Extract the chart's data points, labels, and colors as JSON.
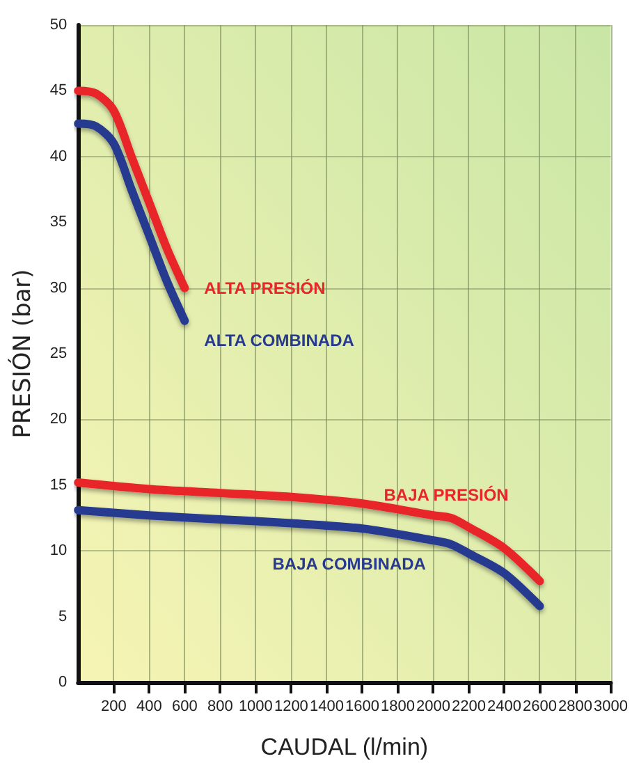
{
  "chart_data": {
    "type": "line",
    "xlabel": "CAUDAL (l/min)",
    "ylabel": "PRESIÓN (bar)",
    "xlim": [
      0,
      3000
    ],
    "xticks": [
      200,
      400,
      600,
      800,
      1000,
      1200,
      1400,
      1600,
      1800,
      2000,
      2200,
      2400,
      2600,
      2800,
      3000
    ],
    "ylim": [
      0,
      50
    ],
    "yticks": [
      0,
      5,
      10,
      15,
      20,
      25,
      30,
      35,
      40,
      45,
      50
    ],
    "grid": true,
    "marker": "none",
    "line_style": "solid",
    "series": [
      {
        "name": "ALTA PRESIÓN",
        "color": "#e8262a",
        "x": [
          0,
          100,
          200,
          300,
          400,
          500,
          600
        ],
        "values": [
          45,
          44.8,
          43.5,
          40,
          36.5,
          33,
          30
        ]
      },
      {
        "name": "ALTA COMBINADA",
        "color": "#283a8f",
        "x": [
          0,
          100,
          200,
          300,
          400,
          500,
          600
        ],
        "values": [
          42.5,
          42.3,
          41,
          37.5,
          34,
          30.5,
          27.5
        ]
      },
      {
        "name": "BAJA PRESIÓN",
        "color": "#e8262a",
        "x": [
          0,
          400,
          800,
          1200,
          1600,
          2000,
          2100,
          2200,
          2400,
          2600
        ],
        "values": [
          15.2,
          14.7,
          14.4,
          14.1,
          13.6,
          12.7,
          12.5,
          11.8,
          10.2,
          7.7
        ]
      },
      {
        "name": "BAJA COMBINADA",
        "color": "#283a8f",
        "x": [
          0,
          400,
          800,
          1200,
          1600,
          2000,
          2100,
          2200,
          2400,
          2600
        ],
        "values": [
          13.1,
          12.7,
          12.4,
          12.1,
          11.7,
          10.8,
          10.5,
          9.8,
          8.3,
          5.8
        ]
      }
    ]
  }
}
